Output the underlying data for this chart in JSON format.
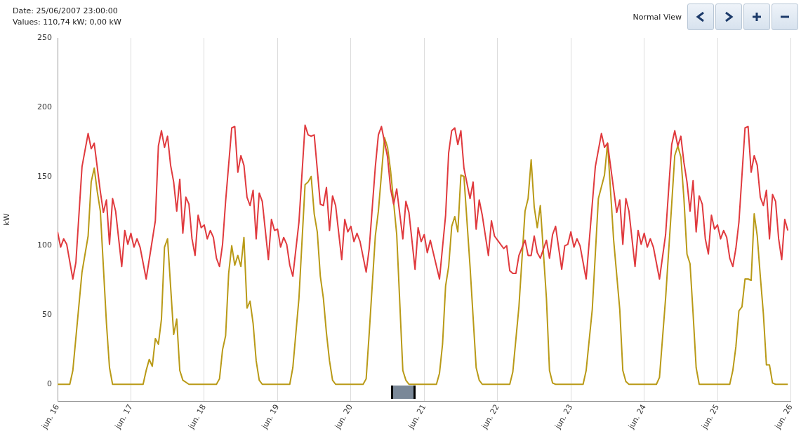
{
  "chart_data": {
    "type": "line",
    "ylabel": "kW",
    "annotations": [
      "Date:  25/06/2007 23:00:00",
      "Values:  110,74 kW; 0,00 kW",
      "Normal View"
    ],
    "xlim": [
      "2007-06-16",
      "2007-06-26"
    ],
    "xticks": [
      {
        "value": "2007-06-16",
        "label": "jun. 16"
      },
      {
        "value": "2007-06-17",
        "label": "jun. 17"
      },
      {
        "value": "2007-06-18",
        "label": "jun. 18"
      },
      {
        "value": "2007-06-19",
        "label": "jun. 19"
      },
      {
        "value": "2007-06-20",
        "label": "jun. 20"
      },
      {
        "value": "2007-06-21",
        "label": "jun. 21"
      },
      {
        "value": "2007-06-22",
        "label": "jun. 22"
      },
      {
        "value": "2007-06-23",
        "label": "jun. 23"
      },
      {
        "value": "2007-06-24",
        "label": "jun. 24"
      },
      {
        "value": "2007-06-25",
        "label": "jun. 25"
      },
      {
        "value": "2007-06-26",
        "label": "jun. 26"
      }
    ],
    "ylim": [
      -12,
      250
    ],
    "yticks": [
      0,
      50,
      100,
      150,
      200,
      250
    ],
    "grid": "x",
    "series": [
      {
        "color": "#e03a3e",
        "x": [
          "2007-06-16T00:00",
          "2007-06-16T01:00",
          "2007-06-16T02:00",
          "2007-06-16T03:00",
          "2007-06-16T05:00",
          "2007-06-16T06:00",
          "2007-06-16T08:00",
          "2007-06-16T10:00",
          "2007-06-16T11:00",
          "2007-06-16T12:00",
          "2007-06-16T14:00",
          "2007-06-16T15:00",
          "2007-06-16T16:00",
          "2007-06-16T17:00",
          "2007-06-16T18:00",
          "2007-06-16T19:00",
          "2007-06-16T21:00",
          "2007-06-16T22:00",
          "2007-06-16T23:00",
          "2007-06-17T00:00",
          "2007-06-17T01:00",
          "2007-06-17T02:00",
          "2007-06-17T03:00",
          "2007-06-17T05:00",
          "2007-06-17T08:00",
          "2007-06-17T09:00",
          "2007-06-17T10:00",
          "2007-06-17T11:00",
          "2007-06-17T12:00",
          "2007-06-17T13:00",
          "2007-06-17T14:00",
          "2007-06-17T15:00",
          "2007-06-17T16:00",
          "2007-06-17T17:00",
          "2007-06-17T18:00",
          "2007-06-17T19:00",
          "2007-06-17T20:00",
          "2007-06-17T21:00",
          "2007-06-17T22:00",
          "2007-06-17T23:00",
          "2007-06-18T00:00",
          "2007-06-18T01:00",
          "2007-06-18T02:00",
          "2007-06-18T03:00",
          "2007-06-18T04:00",
          "2007-06-18T05:00",
          "2007-06-18T06:00",
          "2007-06-18T07:00",
          "2007-06-18T09:00",
          "2007-06-18T10:00",
          "2007-06-18T11:00",
          "2007-06-18T12:00",
          "2007-06-18T13:00",
          "2007-06-18T14:00",
          "2007-06-18T15:00",
          "2007-06-18T16:00",
          "2007-06-18T17:00",
          "2007-06-18T18:00",
          "2007-06-18T19:00",
          "2007-06-18T21:00",
          "2007-06-18T22:00",
          "2007-06-18T23:00",
          "2007-06-19T00:00",
          "2007-06-19T01:00",
          "2007-06-19T02:00",
          "2007-06-19T03:00",
          "2007-06-19T04:00",
          "2007-06-19T05:00",
          "2007-06-19T07:00",
          "2007-06-19T09:00",
          "2007-06-19T10:00",
          "2007-06-19T11:00",
          "2007-06-19T12:00",
          "2007-06-19T14:00",
          "2007-06-19T15:00",
          "2007-06-19T16:00",
          "2007-06-19T17:00",
          "2007-06-19T18:00",
          "2007-06-19T19:00",
          "2007-06-19T21:00",
          "2007-06-19T22:00",
          "2007-06-19T23:00",
          "2007-06-20T00:00",
          "2007-06-20T01:00",
          "2007-06-20T02:00",
          "2007-06-20T03:00",
          "2007-06-20T05:00",
          "2007-06-20T06:00",
          "2007-06-20T08:00",
          "2007-06-20T09:00",
          "2007-06-20T10:00",
          "2007-06-20T11:00",
          "2007-06-20T12:00",
          "2007-06-20T13:00",
          "2007-06-20T14:00",
          "2007-06-20T15:00",
          "2007-06-20T17:00",
          "2007-06-20T18:00",
          "2007-06-20T19:00",
          "2007-06-20T21:00",
          "2007-06-20T22:00",
          "2007-06-20T23:00",
          "2007-06-21T00:00",
          "2007-06-21T01:00",
          "2007-06-21T02:00",
          "2007-06-21T05:00",
          "2007-06-21T07:00",
          "2007-06-21T08:00",
          "2007-06-21T09:00",
          "2007-06-21T10:00",
          "2007-06-21T11:00",
          "2007-06-21T12:00",
          "2007-06-21T13:00",
          "2007-06-21T15:00",
          "2007-06-21T16:00",
          "2007-06-21T17:00",
          "2007-06-21T18:00",
          "2007-06-21T19:00",
          "2007-06-21T21:00",
          "2007-06-21T22:00",
          "2007-06-21T23:00",
          "2007-06-22T00:00",
          "2007-06-22T02:00",
          "2007-06-22T03:00",
          "2007-06-22T04:00",
          "2007-06-22T05:00",
          "2007-06-22T06:00",
          "2007-06-22T07:00",
          "2007-06-22T09:00",
          "2007-06-22T10:00",
          "2007-06-22T11:00",
          "2007-06-22T12:00",
          "2007-06-22T13:00",
          "2007-06-22T14:00",
          "2007-06-22T16:00",
          "2007-06-22T17:00",
          "2007-06-22T18:00",
          "2007-06-22T19:00",
          "2007-06-22T21:00",
          "2007-06-22T22:00",
          "2007-06-22T23:00",
          "2007-06-23T00:00",
          "2007-06-23T01:00",
          "2007-06-23T02:00",
          "2007-06-23T03:00",
          "2007-06-23T05:00",
          "2007-06-23T08:00",
          "2007-06-23T10:00",
          "2007-06-23T11:00",
          "2007-06-23T12:00",
          "2007-06-23T15:00",
          "2007-06-23T16:00",
          "2007-06-23T17:00",
          "2007-06-23T18:00",
          "2007-06-23T19:00",
          "2007-06-23T21:00",
          "2007-06-23T22:00",
          "2007-06-23T23:00",
          "2007-06-24T00:00",
          "2007-06-24T01:00",
          "2007-06-24T02:00",
          "2007-06-24T03:00",
          "2007-06-24T05:00",
          "2007-06-24T07:00",
          "2007-06-24T09:00",
          "2007-06-24T10:00",
          "2007-06-24T11:00",
          "2007-06-24T12:00",
          "2007-06-24T13:00",
          "2007-06-24T14:00",
          "2007-06-24T15:00",
          "2007-06-24T16:00",
          "2007-06-24T17:00",
          "2007-06-24T18:00",
          "2007-06-24T19:00",
          "2007-06-24T20:00",
          "2007-06-24T21:00",
          "2007-06-24T22:00",
          "2007-06-24T23:00",
          "2007-06-25T00:00",
          "2007-06-25T01:00",
          "2007-06-25T02:00",
          "2007-06-25T03:00",
          "2007-06-25T04:00",
          "2007-06-25T05:00",
          "2007-06-25T06:00",
          "2007-06-25T07:00",
          "2007-06-25T09:00",
          "2007-06-25T10:00",
          "2007-06-25T11:00",
          "2007-06-25T12:00",
          "2007-06-25T13:00",
          "2007-06-25T14:00",
          "2007-06-25T15:00",
          "2007-06-25T16:00",
          "2007-06-25T17:00",
          "2007-06-25T18:00",
          "2007-06-25T19:00",
          "2007-06-25T20:00",
          "2007-06-25T21:00",
          "2007-06-25T22:00",
          "2007-06-25T23:00"
        ],
        "values": [
          110,
          99,
          105,
          101,
          76,
          88,
          157,
          181,
          170,
          174,
          139,
          124,
          133,
          101,
          134,
          125,
          85,
          111,
          101,
          109,
          99,
          105,
          99,
          76,
          118,
          172,
          183,
          171,
          179,
          158,
          146,
          125,
          148,
          109,
          135,
          130,
          105,
          93,
          122,
          113,
          115,
          105,
          111,
          106,
          91,
          85,
          101,
          132,
          185,
          186,
          153,
          165,
          158,
          135,
          129,
          140,
          105,
          138,
          132,
          90,
          119,
          111,
          112,
          99,
          106,
          101,
          86,
          78,
          117,
          187,
          180,
          179,
          180,
          130,
          129,
          142,
          111,
          136,
          129,
          90,
          119,
          110,
          114,
          103,
          109,
          103,
          81,
          98,
          157,
          180,
          186,
          175,
          164,
          141,
          130,
          141,
          105,
          132,
          124,
          83,
          113,
          103,
          108,
          95,
          104,
          76,
          122,
          167,
          183,
          185,
          173,
          183,
          156,
          134,
          146,
          112,
          133,
          122,
          93,
          118,
          107,
          104,
          98,
          100,
          82,
          80,
          80,
          93,
          104,
          93,
          93,
          107,
          95,
          91,
          104,
          91,
          108,
          114,
          83,
          100,
          101,
          110,
          99,
          105,
          100,
          76,
          157,
          181,
          171,
          174,
          124,
          133,
          101,
          134,
          125,
          85,
          111,
          101,
          109,
          99,
          105,
          99,
          76,
          108,
          173,
          183,
          172,
          179,
          160,
          146,
          125,
          147,
          110,
          136,
          130,
          105,
          94,
          122,
          112,
          115,
          105,
          111,
          106,
          91,
          85,
          98,
          117,
          185,
          186,
          153,
          165,
          158,
          135,
          129,
          140,
          105,
          137,
          132,
          105,
          90,
          119,
          111
        ]
      },
      {
        "color": "#b99a17",
        "x": [
          "2007-06-16T00:00",
          "2007-06-16T04:00",
          "2007-06-16T05:00",
          "2007-06-16T08:00",
          "2007-06-16T10:00",
          "2007-06-16T11:00",
          "2007-06-16T12:00",
          "2007-06-16T13:00",
          "2007-06-16T14:00",
          "2007-06-16T16:00",
          "2007-06-16T17:00",
          "2007-06-16T18:00",
          "2007-06-17T04:00",
          "2007-06-17T05:00",
          "2007-06-17T06:00",
          "2007-06-17T07:00",
          "2007-06-17T08:00",
          "2007-06-17T09:00",
          "2007-06-17T10:00",
          "2007-06-17T11:00",
          "2007-06-17T12:00",
          "2007-06-17T14:00",
          "2007-06-17T15:00",
          "2007-06-17T16:00",
          "2007-06-17T17:00",
          "2007-06-17T19:00",
          "2007-06-18T04:00",
          "2007-06-18T05:00",
          "2007-06-18T06:00",
          "2007-06-18T07:00",
          "2007-06-18T08:00",
          "2007-06-18T09:00",
          "2007-06-18T10:00",
          "2007-06-18T11:00",
          "2007-06-18T12:00",
          "2007-06-18T13:00",
          "2007-06-18T14:00",
          "2007-06-18T15:00",
          "2007-06-18T16:00",
          "2007-06-18T17:00",
          "2007-06-18T18:00",
          "2007-06-18T19:00",
          "2007-06-19T04:00",
          "2007-06-19T05:00",
          "2007-06-19T07:00",
          "2007-06-19T09:00",
          "2007-06-19T10:00",
          "2007-06-19T11:00",
          "2007-06-19T12:00",
          "2007-06-19T13:00",
          "2007-06-19T14:00",
          "2007-06-19T15:00",
          "2007-06-19T16:00",
          "2007-06-19T17:00",
          "2007-06-19T18:00",
          "2007-06-19T19:00",
          "2007-06-20T04:00",
          "2007-06-20T05:00",
          "2007-06-20T06:00",
          "2007-06-20T08:00",
          "2007-06-20T09:00",
          "2007-06-20T11:00",
          "2007-06-20T12:00",
          "2007-06-20T13:00",
          "2007-06-20T15:00",
          "2007-06-20T17:00",
          "2007-06-20T18:00",
          "2007-06-20T19:00",
          "2007-06-21T04:00",
          "2007-06-21T05:00",
          "2007-06-21T06:00",
          "2007-06-21T07:00",
          "2007-06-21T08:00",
          "2007-06-21T09:00",
          "2007-06-21T10:00",
          "2007-06-21T11:00",
          "2007-06-21T12:00",
          "2007-06-21T13:00",
          "2007-06-21T15:00",
          "2007-06-21T17:00",
          "2007-06-21T18:00",
          "2007-06-21T19:00",
          "2007-06-22T04:00",
          "2007-06-22T05:00",
          "2007-06-22T07:00",
          "2007-06-22T09:00",
          "2007-06-22T10:00",
          "2007-06-22T11:00",
          "2007-06-22T12:00",
          "2007-06-22T13:00",
          "2007-06-22T14:00",
          "2007-06-22T16:00",
          "2007-06-22T17:00",
          "2007-06-22T18:00",
          "2007-06-22T19:00",
          "2007-06-23T04:00",
          "2007-06-23T05:00",
          "2007-06-23T07:00",
          "2007-06-23T09:00",
          "2007-06-23T11:00",
          "2007-06-23T12:00",
          "2007-06-23T13:00",
          "2007-06-23T14:00",
          "2007-06-23T16:00",
          "2007-06-23T17:00",
          "2007-06-23T18:00",
          "2007-06-23T19:00",
          "2007-06-24T04:00",
          "2007-06-24T05:00",
          "2007-06-24T07:00",
          "2007-06-24T09:00",
          "2007-06-24T10:00",
          "2007-06-24T11:00",
          "2007-06-24T12:00",
          "2007-06-24T13:00",
          "2007-06-24T14:00",
          "2007-06-24T15:00",
          "2007-06-24T16:00",
          "2007-06-24T17:00",
          "2007-06-24T18:00",
          "2007-06-25T04:00",
          "2007-06-25T05:00",
          "2007-06-25T06:00",
          "2007-06-25T07:00",
          "2007-06-25T08:00",
          "2007-06-25T09:00",
          "2007-06-25T10:00",
          "2007-06-25T11:00",
          "2007-06-25T12:00",
          "2007-06-25T13:00",
          "2007-06-25T14:00",
          "2007-06-25T15:00",
          "2007-06-25T16:00",
          "2007-06-25T17:00",
          "2007-06-25T18:00",
          "2007-06-25T19:00",
          "2007-06-25T23:00"
        ],
        "values": [
          0,
          0,
          10,
          81,
          107,
          146,
          156,
          139,
          125,
          44,
          12,
          0,
          0,
          10,
          18,
          13,
          33,
          29,
          47,
          99,
          105,
          36,
          47,
          10,
          3,
          0,
          0,
          4,
          25,
          35,
          80,
          100,
          86,
          93,
          85,
          106,
          55,
          60,
          44,
          17,
          3,
          0,
          0,
          12,
          62,
          144,
          146,
          150,
          123,
          110,
          78,
          62,
          37,
          17,
          3,
          0,
          0,
          4,
          37,
          107,
          125,
          178,
          171,
          154,
          108,
          10,
          3,
          0,
          0,
          8,
          29,
          71,
          85,
          114,
          121,
          110,
          151,
          150,
          85,
          12,
          3,
          0,
          0,
          9,
          56,
          125,
          134,
          162,
          128,
          113,
          129,
          62,
          10,
          1,
          0,
          0,
          10,
          54,
          134,
          151,
          174,
          139,
          104,
          54,
          10,
          2,
          0,
          0,
          5,
          62,
          130,
          165,
          172,
          164,
          134,
          94,
          87,
          51,
          12,
          0,
          0,
          10,
          27,
          53,
          56,
          76,
          76,
          75,
          123,
          107,
          78,
          51,
          14,
          14,
          1,
          0,
          0
        ]
      }
    ]
  }
}
